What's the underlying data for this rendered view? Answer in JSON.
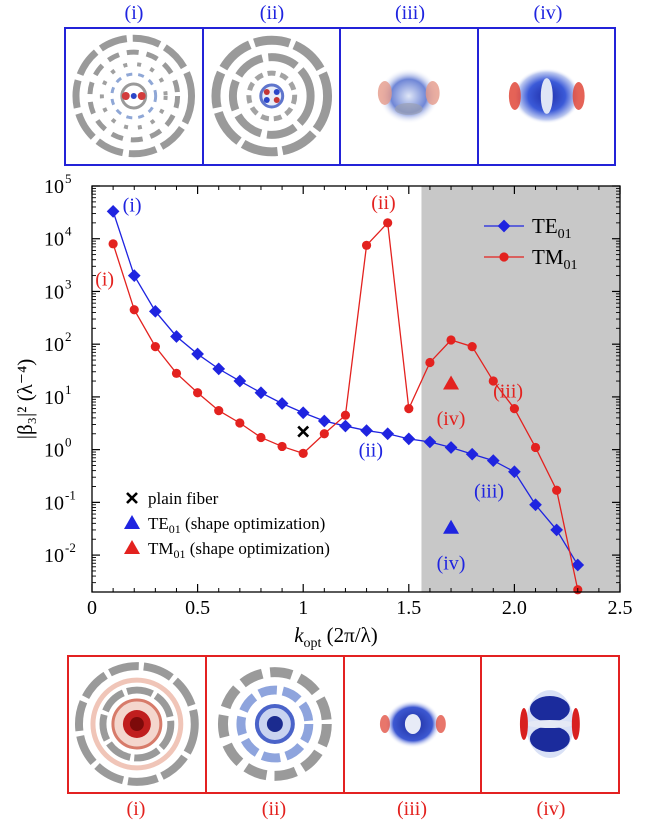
{
  "top_panel_labels": [
    "(i)",
    "(ii)",
    "(iii)",
    "(iv)"
  ],
  "bottom_panel_labels": [
    "(i)",
    "(ii)",
    "(iii)",
    "(iv)"
  ],
  "colors": {
    "te": "#1f24e0",
    "tm": "#e3221f",
    "shade": "#c8c8c8",
    "black": "#000000"
  },
  "chart_data": {
    "type": "line",
    "title": "",
    "xlabel_main": "k",
    "xlabel_sub": "opt",
    "xlabel_unit": " (2π/λ)",
    "ylabel": "|β₃|² (λ⁻⁴)",
    "xlim": [
      0,
      2.5
    ],
    "ylim_log10": [
      -2.7,
      5
    ],
    "y_scale": "log",
    "x_ticks": [
      0,
      0.5,
      1,
      1.5,
      2,
      2.5
    ],
    "x_tick_labels": [
      "0",
      "0.5",
      "1",
      "1.5",
      "2.0",
      "2.5"
    ],
    "y_ticks_exp": [
      -2,
      -1,
      0,
      1,
      2,
      3,
      4,
      5
    ],
    "y_tick_labels": [
      "10",
      "10",
      "10",
      "10",
      "10",
      "10",
      "10",
      "10"
    ],
    "y_tick_exps": [
      "-2",
      "-1",
      "0",
      "1",
      "2",
      "3",
      "4",
      "5"
    ],
    "shaded_region_x": [
      1.56,
      2.5
    ],
    "legend_position": "top-right",
    "series": [
      {
        "name": "TE",
        "name_sub": "01",
        "marker": "square",
        "x": [
          0.1,
          0.2,
          0.3,
          0.4,
          0.5,
          0.6,
          0.7,
          0.8,
          0.9,
          1.0,
          1.1,
          1.2,
          1.3,
          1.4,
          1.5,
          1.6,
          1.7,
          1.8,
          1.9,
          2.0,
          2.1,
          2.2,
          2.3
        ],
        "y": [
          33000,
          2000,
          420,
          140,
          65,
          34,
          20,
          12,
          7.5,
          5,
          3.5,
          2.8,
          2.3,
          2.0,
          1.6,
          1.4,
          1.1,
          0.82,
          0.62,
          0.38,
          0.09,
          0.03,
          0.0065
        ]
      },
      {
        "name": "TM",
        "name_sub": "01",
        "marker": "circle",
        "x": [
          0.1,
          0.2,
          0.3,
          0.4,
          0.5,
          0.6,
          0.7,
          0.8,
          0.9,
          1.0,
          1.1,
          1.2,
          1.3,
          1.4,
          1.5,
          1.6,
          1.7,
          1.8,
          1.9,
          2.0,
          2.1,
          2.2,
          2.3
        ],
        "y": [
          8000,
          450,
          90,
          28,
          12,
          5.5,
          3.2,
          1.7,
          1.15,
          0.85,
          2.0,
          4.5,
          7500,
          20000,
          6,
          45,
          120,
          90,
          20,
          6,
          1.1,
          0.17,
          0.0022
        ]
      }
    ],
    "extra_points": [
      {
        "label": "plain fiber",
        "x": 1.0,
        "y": 2.2,
        "marker": "x",
        "color": "black"
      },
      {
        "label": "TE",
        "label_sub": "01",
        "label_rest": " (shape optimization)",
        "x": 1.7,
        "y": 0.033,
        "marker": "triangle",
        "color": "te"
      },
      {
        "label": "TM",
        "label_sub": "01",
        "label_rest": " (shape optimization)",
        "x": 1.7,
        "y": 18,
        "marker": "triangle",
        "color": "tm"
      }
    ],
    "annotations": [
      {
        "text": "(i)",
        "x": 0.19,
        "y": 40000,
        "color": "te"
      },
      {
        "text": "(i)",
        "x": 0.06,
        "y": 1600,
        "color": "tm"
      },
      {
        "text": "(ii)",
        "x": 1.38,
        "y": 45000,
        "color": "tm"
      },
      {
        "text": "(ii)",
        "x": 1.32,
        "y": 0.9,
        "color": "te"
      },
      {
        "text": "(iii)",
        "x": 1.97,
        "y": 12,
        "color": "tm"
      },
      {
        "text": "(iii)",
        "x": 1.88,
        "y": 0.15,
        "color": "te"
      },
      {
        "text": "(iv)",
        "x": 1.7,
        "y": 3.6,
        "color": "tm"
      },
      {
        "text": "(iv)",
        "x": 1.7,
        "y": 0.0065,
        "color": "te"
      }
    ]
  }
}
